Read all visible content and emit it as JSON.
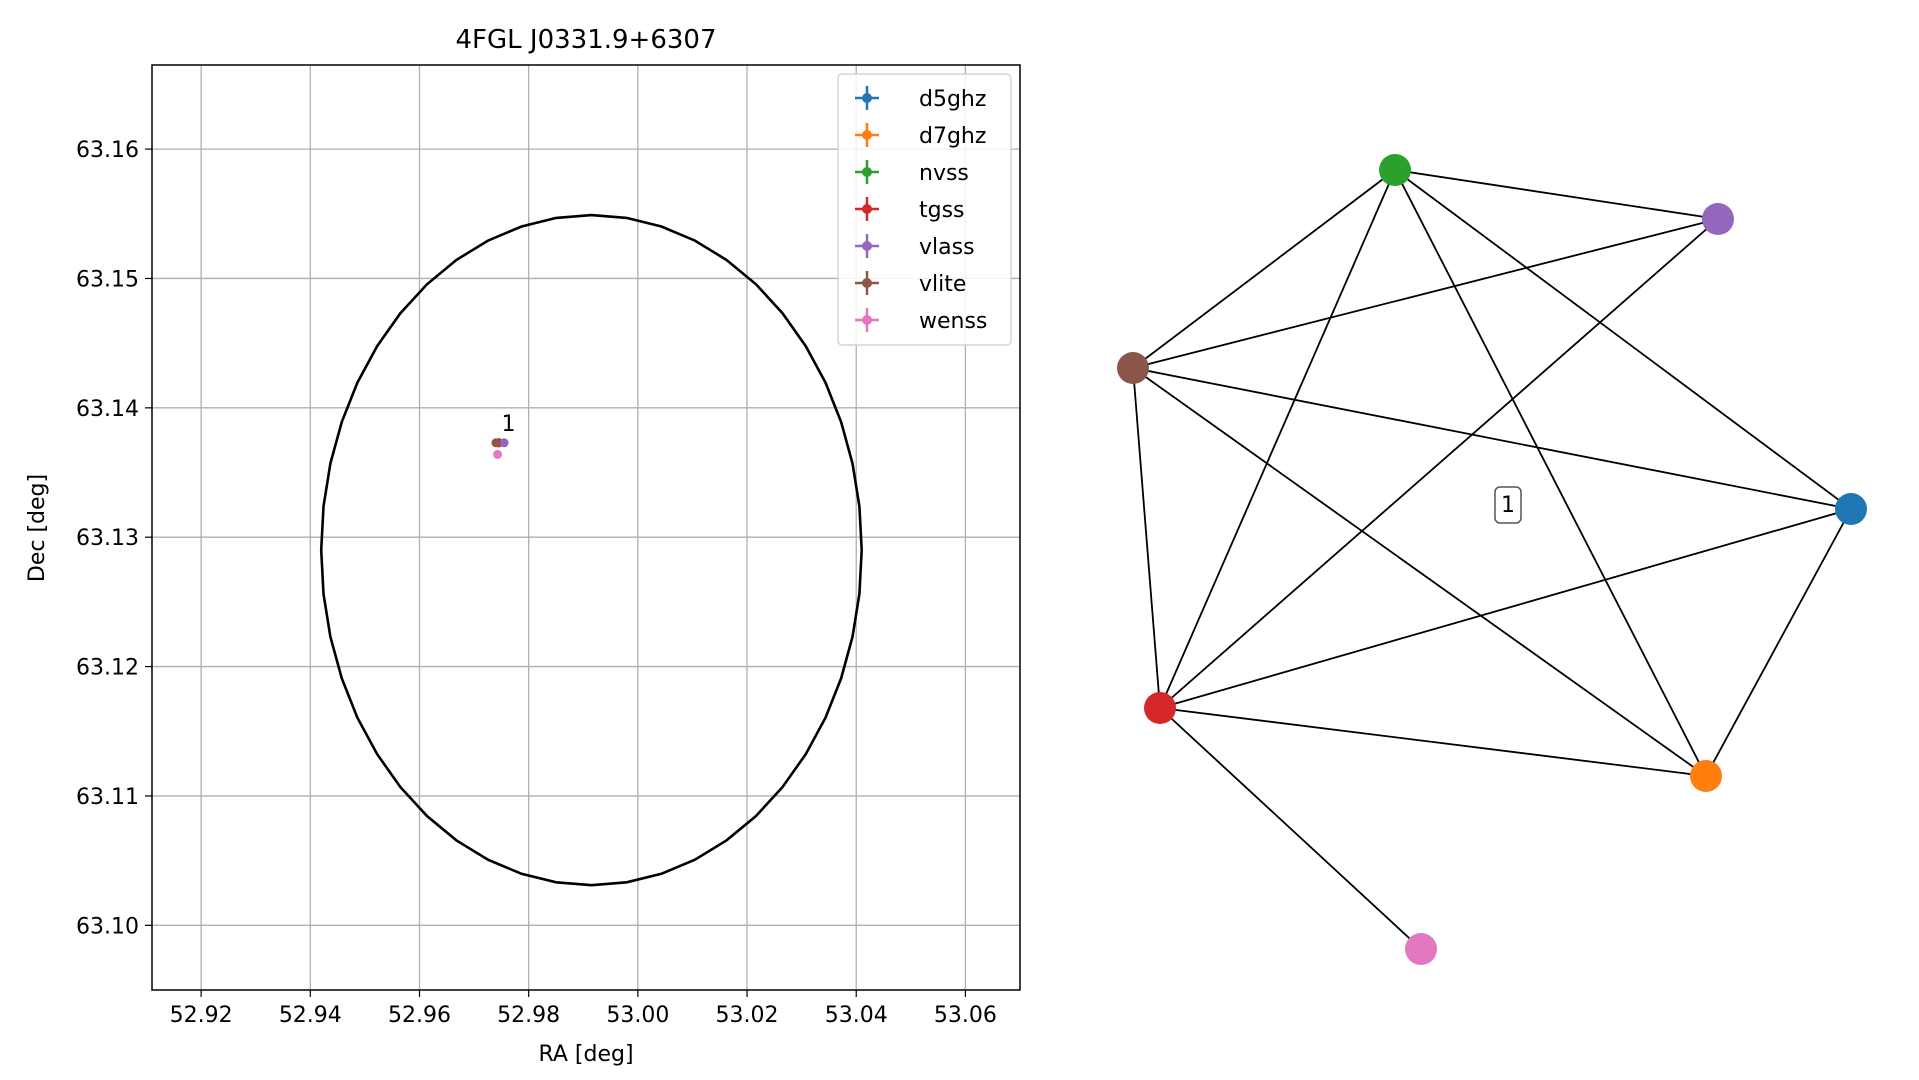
{
  "chart_data": [
    {
      "type": "scatter",
      "title": "4FGL J0331.9+6307",
      "xlabel": "RA [deg]",
      "ylabel": "Dec [deg]",
      "xlim": [
        52.911,
        53.07
      ],
      "ylim": [
        63.095,
        63.1665
      ],
      "xticks": [
        "52.92",
        "52.94",
        "52.96",
        "52.98",
        "53.00",
        "53.02",
        "53.04",
        "53.06"
      ],
      "yticks": [
        "63.10",
        "63.11",
        "63.12",
        "63.13",
        "63.14",
        "63.15",
        "63.16"
      ],
      "grid": true,
      "legend": "top-right",
      "ellipse": {
        "center": [
          52.9915,
          63.129
        ],
        "ra_radius": 0.0495,
        "dec_radius": 0.0259,
        "color": "#000000"
      },
      "series": [
        {
          "name": "d5ghz",
          "color": "#1f77b4",
          "x": [
            52.9745
          ],
          "y": [
            63.1373
          ]
        },
        {
          "name": "d7ghz",
          "color": "#ff7f0e",
          "x": [
            52.9745
          ],
          "y": [
            63.1373
          ]
        },
        {
          "name": "nvss",
          "color": "#2ca02c",
          "x": [
            52.9745
          ],
          "y": [
            63.1373
          ]
        },
        {
          "name": "tgss",
          "color": "#d62728",
          "x": [
            52.9745
          ],
          "y": [
            63.1373
          ]
        },
        {
          "name": "vlass",
          "color": "#9467bd",
          "x": [
            52.9755
          ],
          "y": [
            63.1373
          ]
        },
        {
          "name": "vlite",
          "color": "#8c564b",
          "x": [
            52.974
          ],
          "y": [
            63.1373
          ]
        },
        {
          "name": "wenss",
          "color": "#e377c2",
          "x": [
            52.9743
          ],
          "y": [
            63.1364
          ]
        }
      ],
      "annotations": [
        {
          "text": "1",
          "x": 52.9763,
          "y": 63.1382
        }
      ]
    },
    {
      "type": "network",
      "nodes": [
        {
          "id": "d5ghz",
          "color": "#1f77b4"
        },
        {
          "id": "d7ghz",
          "color": "#ff7f0e"
        },
        {
          "id": "nvss",
          "color": "#2ca02c"
        },
        {
          "id": "tgss",
          "color": "#d62728"
        },
        {
          "id": "vlass",
          "color": "#9467bd"
        },
        {
          "id": "vlite",
          "color": "#8c564b"
        },
        {
          "id": "wenss",
          "color": "#e377c2"
        }
      ],
      "edges": [
        [
          "nvss",
          "vlass"
        ],
        [
          "nvss",
          "vlite"
        ],
        [
          "nvss",
          "d5ghz"
        ],
        [
          "nvss",
          "tgss"
        ],
        [
          "nvss",
          "d7ghz"
        ],
        [
          "vlite",
          "vlass"
        ],
        [
          "vlite",
          "d5ghz"
        ],
        [
          "vlite",
          "tgss"
        ],
        [
          "vlite",
          "d7ghz"
        ],
        [
          "vlass",
          "tgss"
        ],
        [
          "tgss",
          "d5ghz"
        ],
        [
          "tgss",
          "d7ghz"
        ],
        [
          "tgss",
          "wenss"
        ],
        [
          "d5ghz",
          "d7ghz"
        ]
      ],
      "group_label": "1"
    }
  ]
}
